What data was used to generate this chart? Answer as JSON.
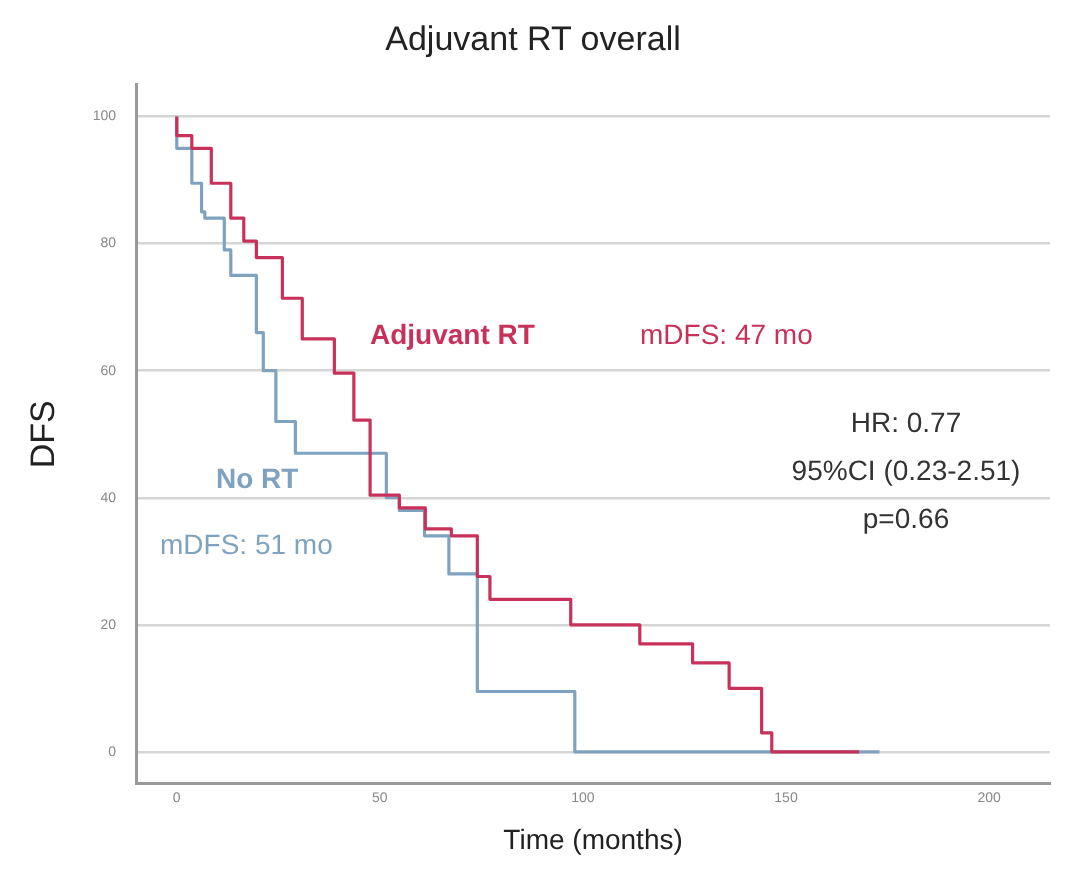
{
  "chart_data": {
    "type": "step",
    "title": "Adjuvant RT overall",
    "xlabel": "Time (months)",
    "ylabel": "DFS",
    "xlim": [
      -10,
      215
    ],
    "xticks": [
      0,
      50,
      100,
      150,
      200
    ],
    "ylim": [
      -5,
      105
    ],
    "yticks": [
      0,
      20,
      40,
      60,
      80,
      100
    ],
    "grid": "y",
    "marker": "none",
    "line_style": "solid",
    "series": [
      {
        "name": "Adjuvant RT",
        "color": "#c8325a",
        "x": [
          0,
          3.7,
          8.5,
          13.3,
          16.5,
          19.6,
          26,
          30.9,
          38.8,
          43.6,
          47.6,
          54.8,
          61.2,
          67.6,
          74,
          77.1,
          97,
          114,
          127,
          136,
          144,
          146.5,
          168
        ],
        "values": [
          100,
          97,
          95,
          89.5,
          84,
          80.4,
          77.8,
          71.4,
          65,
          59.6,
          52.2,
          40.4,
          38.4,
          35.1,
          34,
          27.6,
          24,
          20,
          17,
          14,
          10,
          3,
          0
        ]
      },
      {
        "name": "No RT",
        "color": "#7fa3bf",
        "x": [
          0,
          3.7,
          6.1,
          6.9,
          11.7,
          13.3,
          19.6,
          21.3,
          24.4,
          29.2,
          51.6,
          54.8,
          61,
          67,
          74,
          98,
          173
        ],
        "values": [
          100,
          95,
          89.5,
          85,
          84,
          79,
          75,
          66,
          60,
          52,
          47,
          40,
          38,
          34,
          28,
          9.5,
          0
        ]
      }
    ],
    "annotations": [
      "mDFS: 47 mo",
      "mDFS: 51 mo",
      "HR: 0.77",
      "95%CI (0.23-2.51)",
      "p=0.66"
    ]
  }
}
